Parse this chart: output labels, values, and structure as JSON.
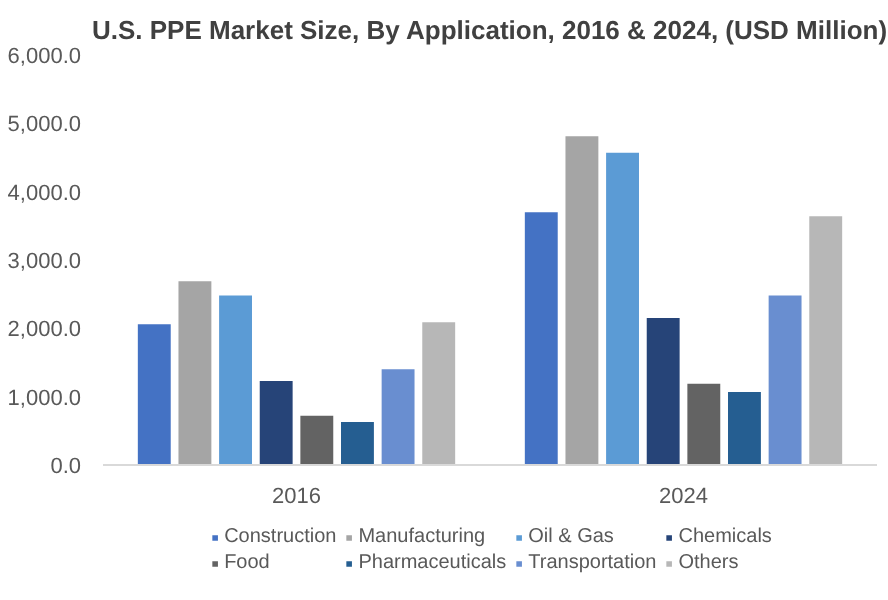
{
  "chart_data": {
    "type": "bar",
    "title": "U.S. PPE Market Size, By Application, 2016 & 2024, (USD Million)",
    "categories": [
      "2016",
      "2024"
    ],
    "series": [
      {
        "name": "Construction",
        "color": "#4472c4",
        "values": [
          2060,
          3700
        ]
      },
      {
        "name": "Manufacturing",
        "color": "#a5a5a5",
        "values": [
          2690,
          4810
        ]
      },
      {
        "name": "Oil & Gas",
        "color": "#5b9bd5",
        "values": [
          2480,
          4570
        ]
      },
      {
        "name": "Chemicals",
        "color": "#264478",
        "values": [
          1230,
          2150
        ]
      },
      {
        "name": "Food",
        "color": "#636363",
        "values": [
          720,
          1190
        ]
      },
      {
        "name": "Pharmaceuticals",
        "color": "#255e91",
        "values": [
          630,
          1070
        ]
      },
      {
        "name": "Transportation",
        "color": "#698ed0",
        "values": [
          1400,
          2480
        ]
      },
      {
        "name": "Others",
        "color": "#b7b7b7",
        "values": [
          2090,
          3640
        ]
      }
    ],
    "ylim": [
      0,
      6000
    ],
    "yticks": [
      {
        "value": 0,
        "label": "0.0"
      },
      {
        "value": 1000,
        "label": "1,000.0"
      },
      {
        "value": 2000,
        "label": "2,000.0"
      },
      {
        "value": 3000,
        "label": "3,000.0"
      },
      {
        "value": 4000,
        "label": "4,000.0"
      },
      {
        "value": 5000,
        "label": "5,000.0"
      },
      {
        "value": 6000,
        "label": "6,000.0"
      }
    ],
    "grid": false,
    "legend": "bottom"
  }
}
